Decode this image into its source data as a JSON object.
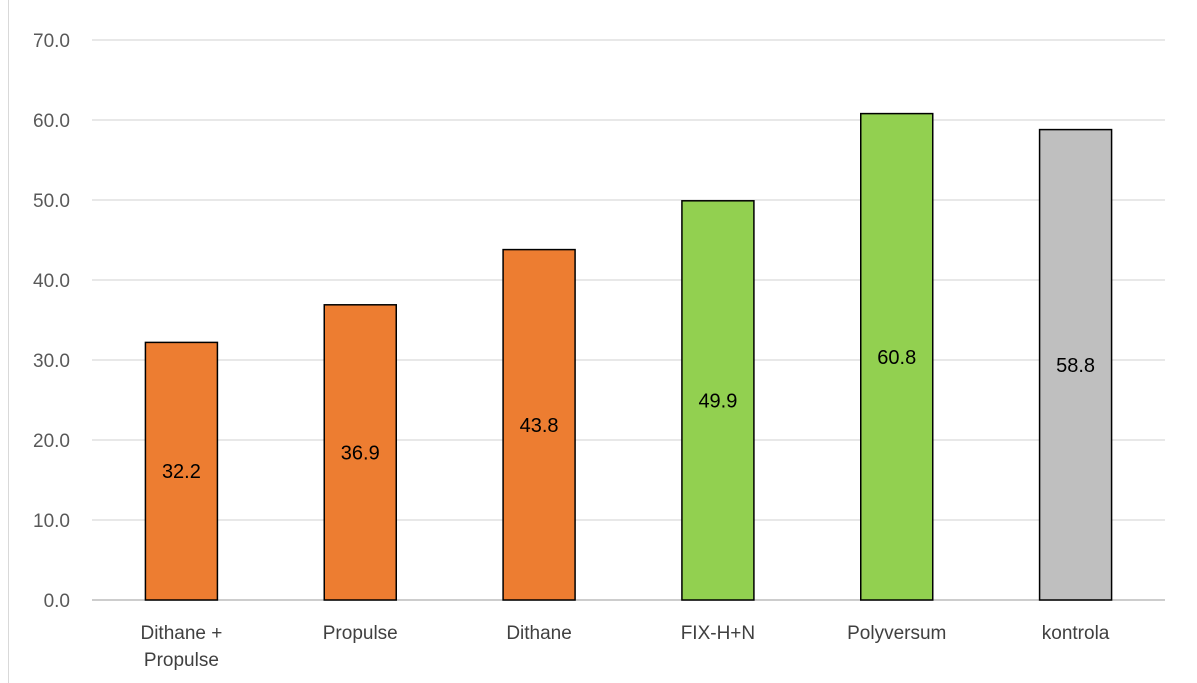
{
  "chart_data": {
    "type": "bar",
    "categories": [
      [
        "Dithane +",
        "Propulse"
      ],
      [
        "Propulse"
      ],
      [
        "Dithane"
      ],
      [
        "FIX-H+N"
      ],
      [
        "Polyversum"
      ],
      [
        "kontrola"
      ]
    ],
    "values": [
      32.2,
      36.9,
      43.8,
      49.9,
      60.8,
      58.8
    ],
    "value_labels": [
      "32.2",
      "36.9",
      "43.8",
      "49.9",
      "60.8",
      "58.8"
    ],
    "bar_colors": [
      "#ed7d31",
      "#ed7d31",
      "#ed7d31",
      "#92d050",
      "#92d050",
      "#bfbfbf"
    ],
    "ylim": [
      0,
      70
    ],
    "yticks": [
      "0.0",
      "10.0",
      "20.0",
      "30.0",
      "40.0",
      "50.0",
      "60.0",
      "70.0"
    ],
    "grid": true,
    "gridline_color": "#d9d9d9",
    "bar_border_color": "#000000",
    "legend": "none"
  }
}
